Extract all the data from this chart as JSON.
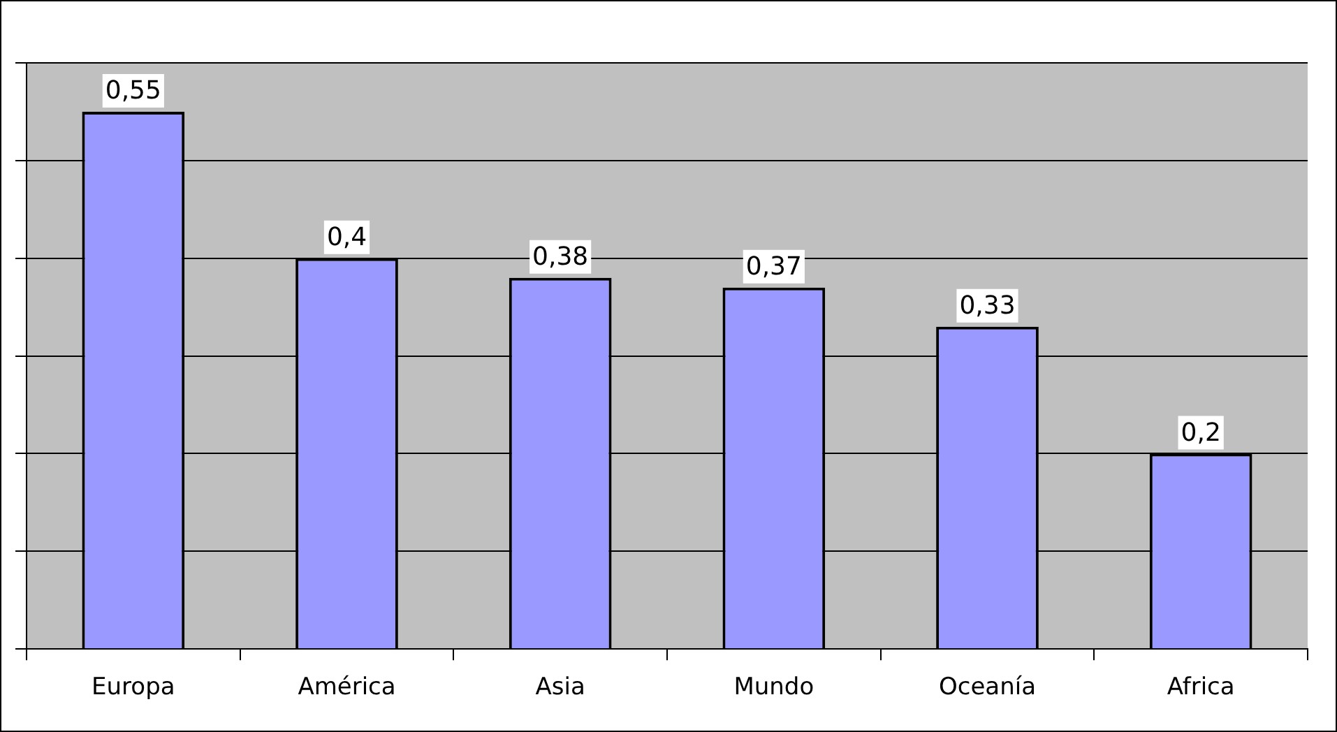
{
  "chart_data": {
    "type": "bar",
    "categories": [
      "Europa",
      "América",
      "Asia",
      "Mundo",
      "Oceanía",
      "Africa"
    ],
    "values": [
      0.55,
      0.4,
      0.38,
      0.37,
      0.33,
      0.2
    ],
    "color": "#9999ff",
    "ylim": [
      0,
      0.6
    ],
    "tick_labels": "x",
    "grid": "y",
    "data_labels": true,
    "value_labels": [
      "0,55",
      "0,4",
      "0,38",
      "0,37",
      "0,33",
      "0,2"
    ]
  }
}
